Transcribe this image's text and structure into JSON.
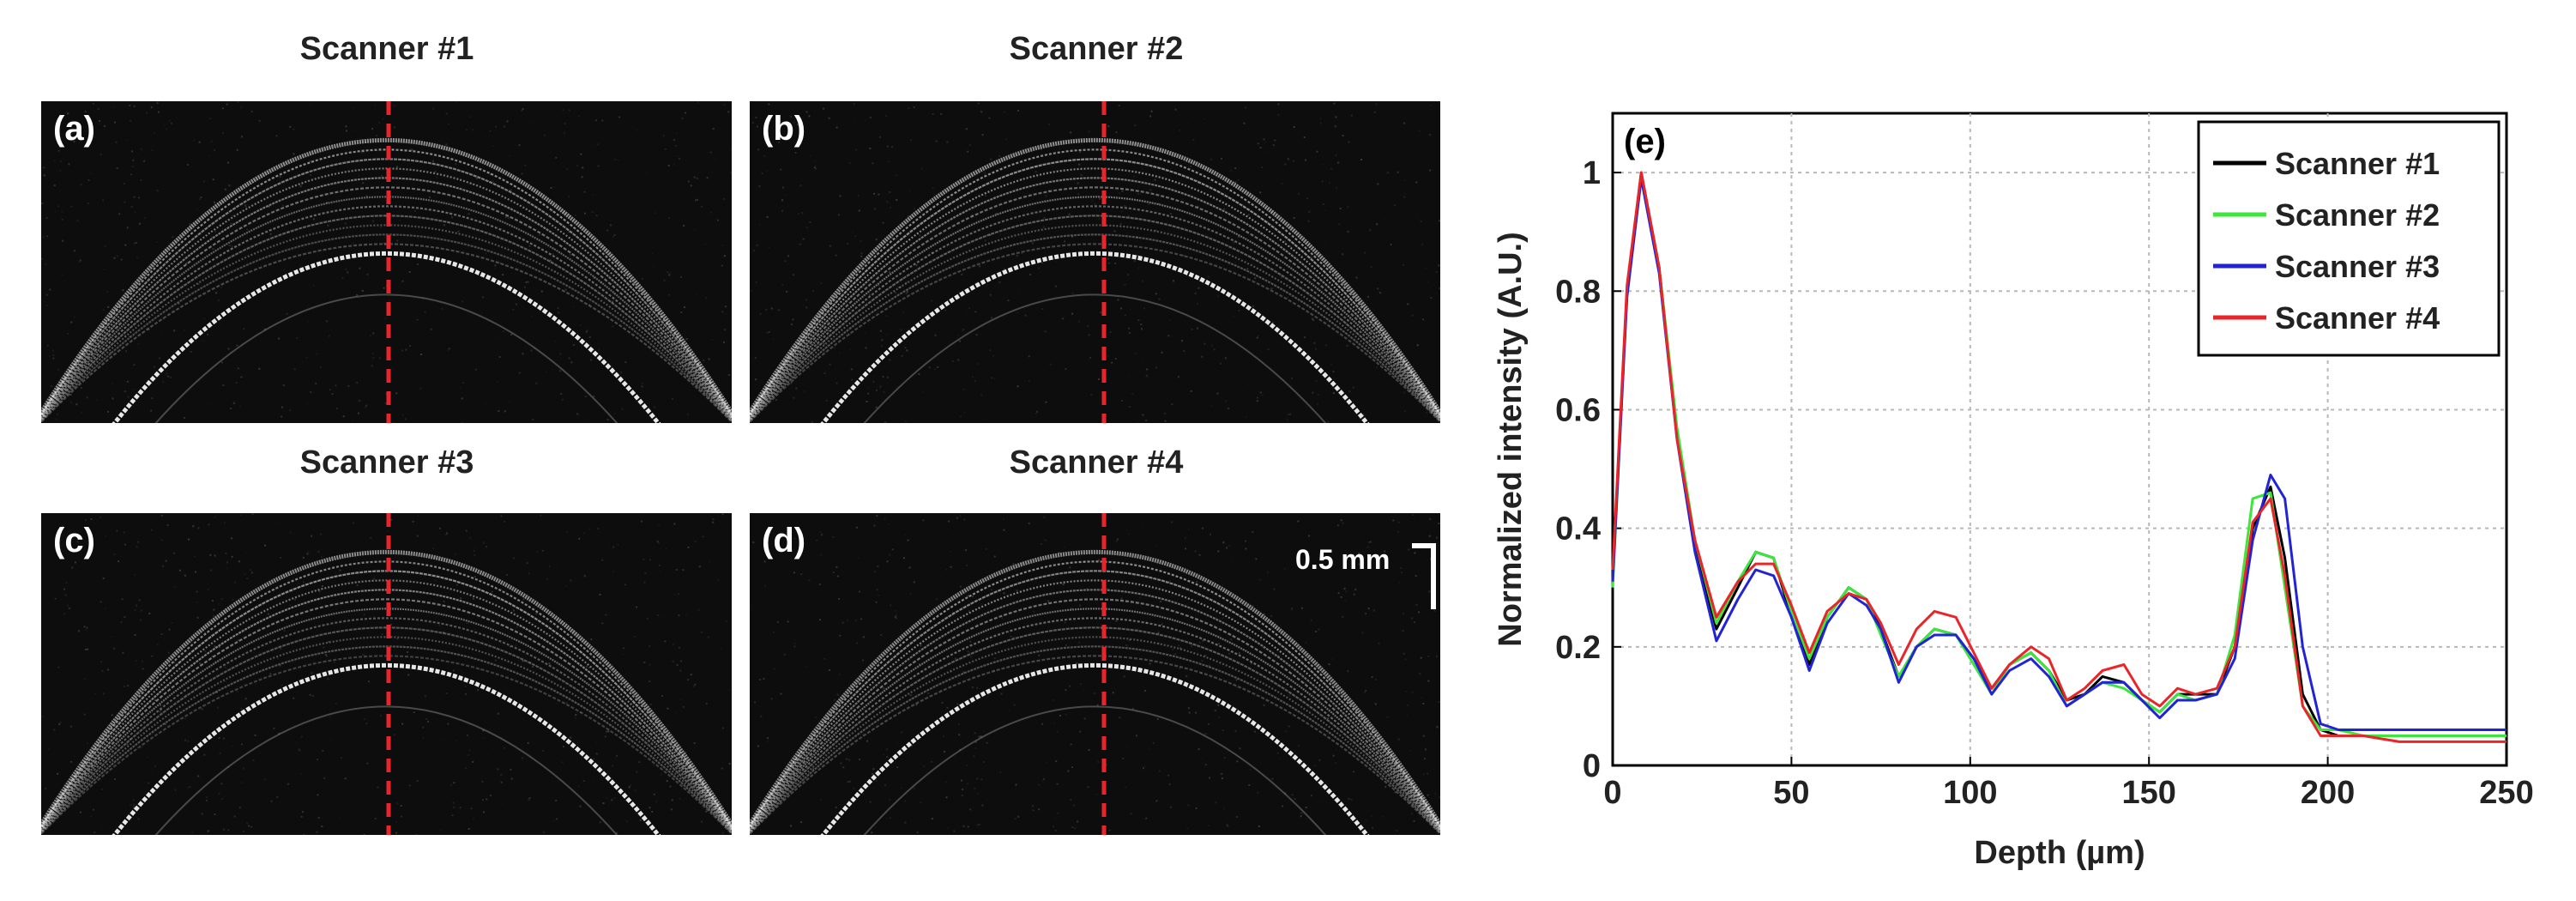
{
  "panels": [
    {
      "title": "Scanner #1",
      "label": "(a)"
    },
    {
      "title": "Scanner #2",
      "label": "(b)"
    },
    {
      "title": "Scanner #3",
      "label": "(c)"
    },
    {
      "title": "Scanner #4",
      "label": "(d)"
    }
  ],
  "scale_bar": {
    "label": "0.5 mm"
  },
  "colors": {
    "dashed_line": "#e8262a",
    "panel_background": "#0d0d0d"
  },
  "chart_data": {
    "type": "line",
    "panel_label": "(e)",
    "xlabel": "Depth (µm)",
    "ylabel": "Normalized intensity (A.U.)",
    "xlim": [
      0,
      250
    ],
    "ylim": [
      0,
      1.1
    ],
    "xticks": [
      0,
      50,
      100,
      150,
      200,
      250
    ],
    "yticks": [
      0,
      0.2,
      0.4,
      0.6,
      0.8,
      1
    ],
    "ytick_labels": [
      "0",
      "0.2",
      "0.4",
      "0.6",
      "0.8",
      "1"
    ],
    "grid": true,
    "legend_position": "top-right",
    "series": [
      {
        "name": "Scanner #1",
        "color": "#000000",
        "x": [
          0,
          4,
          8,
          13,
          18,
          23,
          29,
          35,
          40,
          45,
          50,
          55,
          60,
          66,
          71,
          75,
          80,
          85,
          90,
          96,
          101,
          106,
          111,
          117,
          122,
          127,
          132,
          137,
          143,
          148,
          153,
          158,
          163,
          169,
          174,
          179,
          184,
          188,
          193,
          198,
          203,
          210,
          220,
          230,
          240,
          250
        ],
        "y": [
          0.32,
          0.8,
          1.0,
          0.84,
          0.56,
          0.37,
          0.23,
          0.3,
          0.36,
          0.35,
          0.25,
          0.17,
          0.25,
          0.3,
          0.28,
          0.23,
          0.15,
          0.2,
          0.23,
          0.22,
          0.18,
          0.13,
          0.17,
          0.19,
          0.16,
          0.11,
          0.12,
          0.15,
          0.14,
          0.11,
          0.09,
          0.12,
          0.12,
          0.12,
          0.2,
          0.4,
          0.47,
          0.35,
          0.12,
          0.06,
          0.05,
          0.05,
          0.05,
          0.05,
          0.05,
          0.05
        ]
      },
      {
        "name": "Scanner #2",
        "color": "#3ce63c",
        "x": [
          0,
          4,
          8,
          13,
          18,
          23,
          29,
          35,
          40,
          45,
          50,
          55,
          60,
          66,
          71,
          75,
          80,
          85,
          90,
          96,
          101,
          106,
          111,
          117,
          122,
          127,
          132,
          137,
          143,
          148,
          153,
          158,
          163,
          169,
          174,
          179,
          184,
          188,
          193,
          198,
          203,
          210,
          220,
          230,
          240,
          250
        ],
        "y": [
          0.3,
          0.8,
          0.99,
          0.84,
          0.57,
          0.38,
          0.24,
          0.31,
          0.36,
          0.35,
          0.26,
          0.18,
          0.25,
          0.3,
          0.28,
          0.22,
          0.15,
          0.2,
          0.23,
          0.22,
          0.17,
          0.12,
          0.17,
          0.19,
          0.16,
          0.1,
          0.12,
          0.14,
          0.13,
          0.11,
          0.09,
          0.12,
          0.11,
          0.12,
          0.22,
          0.45,
          0.46,
          0.3,
          0.1,
          0.06,
          0.06,
          0.05,
          0.05,
          0.05,
          0.05,
          0.05
        ]
      },
      {
        "name": "Scanner #3",
        "color": "#2323d6",
        "x": [
          0,
          4,
          8,
          13,
          18,
          23,
          29,
          35,
          40,
          45,
          50,
          55,
          60,
          66,
          71,
          75,
          80,
          85,
          90,
          96,
          101,
          106,
          111,
          117,
          122,
          127,
          132,
          137,
          143,
          148,
          153,
          158,
          163,
          169,
          174,
          179,
          184,
          188,
          193,
          198,
          203,
          210,
          220,
          230,
          240,
          250
        ],
        "y": [
          0.31,
          0.79,
          0.99,
          0.83,
          0.55,
          0.36,
          0.21,
          0.28,
          0.33,
          0.32,
          0.25,
          0.16,
          0.24,
          0.29,
          0.27,
          0.23,
          0.14,
          0.2,
          0.22,
          0.22,
          0.18,
          0.12,
          0.16,
          0.18,
          0.15,
          0.1,
          0.12,
          0.14,
          0.14,
          0.11,
          0.08,
          0.11,
          0.11,
          0.12,
          0.18,
          0.38,
          0.49,
          0.45,
          0.2,
          0.07,
          0.06,
          0.06,
          0.06,
          0.06,
          0.06,
          0.06
        ]
      },
      {
        "name": "Scanner #4",
        "color": "#e8262a",
        "x": [
          0,
          4,
          8,
          13,
          18,
          23,
          29,
          35,
          40,
          45,
          50,
          55,
          60,
          66,
          71,
          75,
          80,
          85,
          90,
          96,
          101,
          106,
          111,
          117,
          122,
          127,
          132,
          137,
          143,
          148,
          153,
          158,
          163,
          169,
          174,
          179,
          184,
          188,
          193,
          198,
          203,
          210,
          220,
          230,
          240,
          250
        ],
        "y": [
          0.33,
          0.81,
          1.0,
          0.84,
          0.55,
          0.38,
          0.25,
          0.31,
          0.34,
          0.34,
          0.27,
          0.19,
          0.26,
          0.29,
          0.28,
          0.24,
          0.17,
          0.23,
          0.26,
          0.25,
          0.19,
          0.13,
          0.17,
          0.2,
          0.18,
          0.11,
          0.13,
          0.16,
          0.17,
          0.12,
          0.1,
          0.13,
          0.12,
          0.13,
          0.2,
          0.41,
          0.45,
          0.32,
          0.1,
          0.05,
          0.05,
          0.05,
          0.04,
          0.04,
          0.04,
          0.04
        ]
      }
    ]
  }
}
